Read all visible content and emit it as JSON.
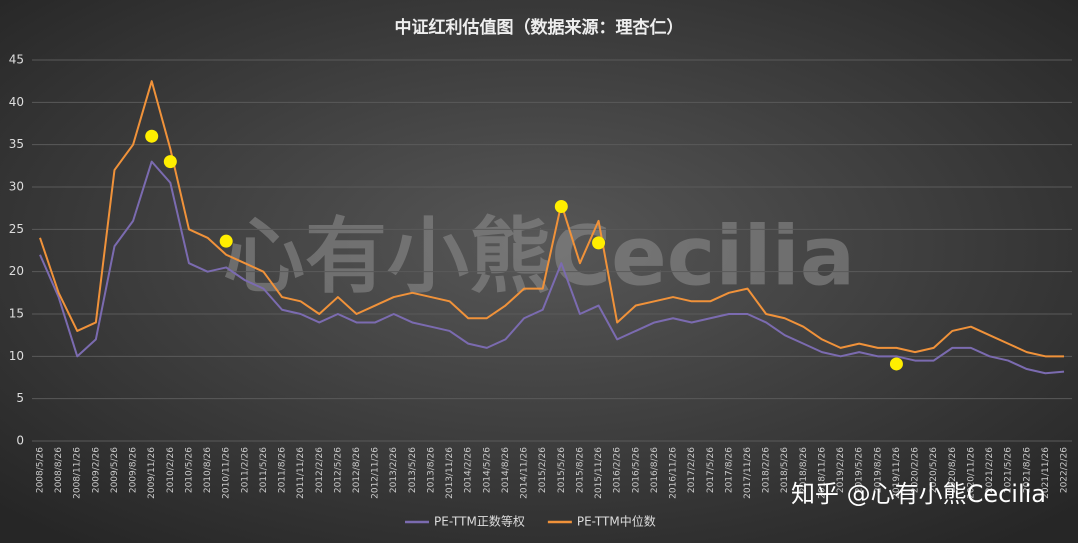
{
  "chart_data": {
    "type": "line",
    "title": "中证红利估值图（数据来源：理杏仁）",
    "watermark": "心有小熊Cecilia",
    "credit": "知乎 @心有小熊Cecilia",
    "categories": [
      "2008/5/26",
      "2008/8/26",
      "2008/11/26",
      "2009/2/26",
      "2009/5/26",
      "2009/8/26",
      "2009/11/26",
      "2010/2/26",
      "2010/5/26",
      "2010/8/26",
      "2010/11/26",
      "2011/2/26",
      "2011/5/26",
      "2011/8/26",
      "2011/11/26",
      "2012/2/26",
      "2012/5/26",
      "2012/8/26",
      "2012/11/26",
      "2013/2/26",
      "2013/5/26",
      "2013/8/26",
      "2013/11/26",
      "2014/2/26",
      "2014/5/26",
      "2014/8/26",
      "2014/11/26",
      "2015/2/26",
      "2015/5/26",
      "2015/8/26",
      "2015/11/26",
      "2016/2/26",
      "2016/5/26",
      "2016/8/26",
      "2016/11/26",
      "2017/2/26",
      "2017/5/26",
      "2017/8/26",
      "2017/11/26",
      "2018/2/26",
      "2018/5/26",
      "2018/8/26",
      "2018/11/26",
      "2019/2/26",
      "2019/5/26",
      "2019/8/26",
      "2019/11/26",
      "2020/2/26",
      "2020/5/26",
      "2020/8/26",
      "2020/11/26",
      "2021/2/26",
      "2021/5/26",
      "2021/8/26",
      "2021/11/26",
      "2022/2/26"
    ],
    "series": [
      {
        "name": "PE-TTM正数等权",
        "color": "#7b6bb0",
        "values": [
          22,
          17,
          10,
          12,
          23,
          26,
          33,
          30.5,
          21,
          20,
          20.5,
          19,
          18,
          15.5,
          15,
          14,
          15,
          14,
          14,
          15,
          14,
          13.5,
          13,
          11.5,
          11,
          12,
          14.5,
          15.5,
          21,
          15,
          16,
          12,
          13,
          14,
          14.5,
          14,
          14.5,
          15,
          15,
          14,
          12.5,
          11.5,
          10.5,
          10,
          10.5,
          10,
          10,
          9.5,
          9.5,
          11,
          11,
          10,
          9.5,
          8.5,
          8,
          8.2
        ]
      },
      {
        "name": "PE-TTM中位数",
        "color": "#f0923a",
        "values": [
          24,
          17.5,
          13,
          14,
          32,
          35,
          42.5,
          34.5,
          25,
          24,
          22,
          21,
          20,
          17,
          16.5,
          15,
          17,
          15,
          16,
          17,
          17.5,
          17,
          16.5,
          14.5,
          14.5,
          16,
          18,
          18,
          28,
          21,
          26,
          14,
          16,
          16.5,
          17,
          16.5,
          16.5,
          17.5,
          18,
          15,
          14.5,
          13.5,
          12,
          11,
          11.5,
          11,
          11,
          10.5,
          11,
          13,
          13.5,
          12.5,
          11.5,
          10.5,
          10,
          10
        ]
      }
    ],
    "markers": {
      "color": "#ffee00",
      "points": [
        {
          "category": "2009/11/26",
          "value": 36
        },
        {
          "category": "2010/2/26",
          "value": 33
        },
        {
          "category": "2010/11/26",
          "value": 23.6
        },
        {
          "category": "2015/5/26",
          "value": 27.7
        },
        {
          "category": "2015/11/26",
          "value": 23.4
        },
        {
          "category": "2019/11/26",
          "value": 9.1
        }
      ]
    },
    "ylim": [
      0,
      45
    ],
    "yticks": [
      0,
      5,
      10,
      15,
      20,
      25,
      30,
      35,
      40,
      45
    ],
    "grid": true,
    "legend": "bottom"
  }
}
